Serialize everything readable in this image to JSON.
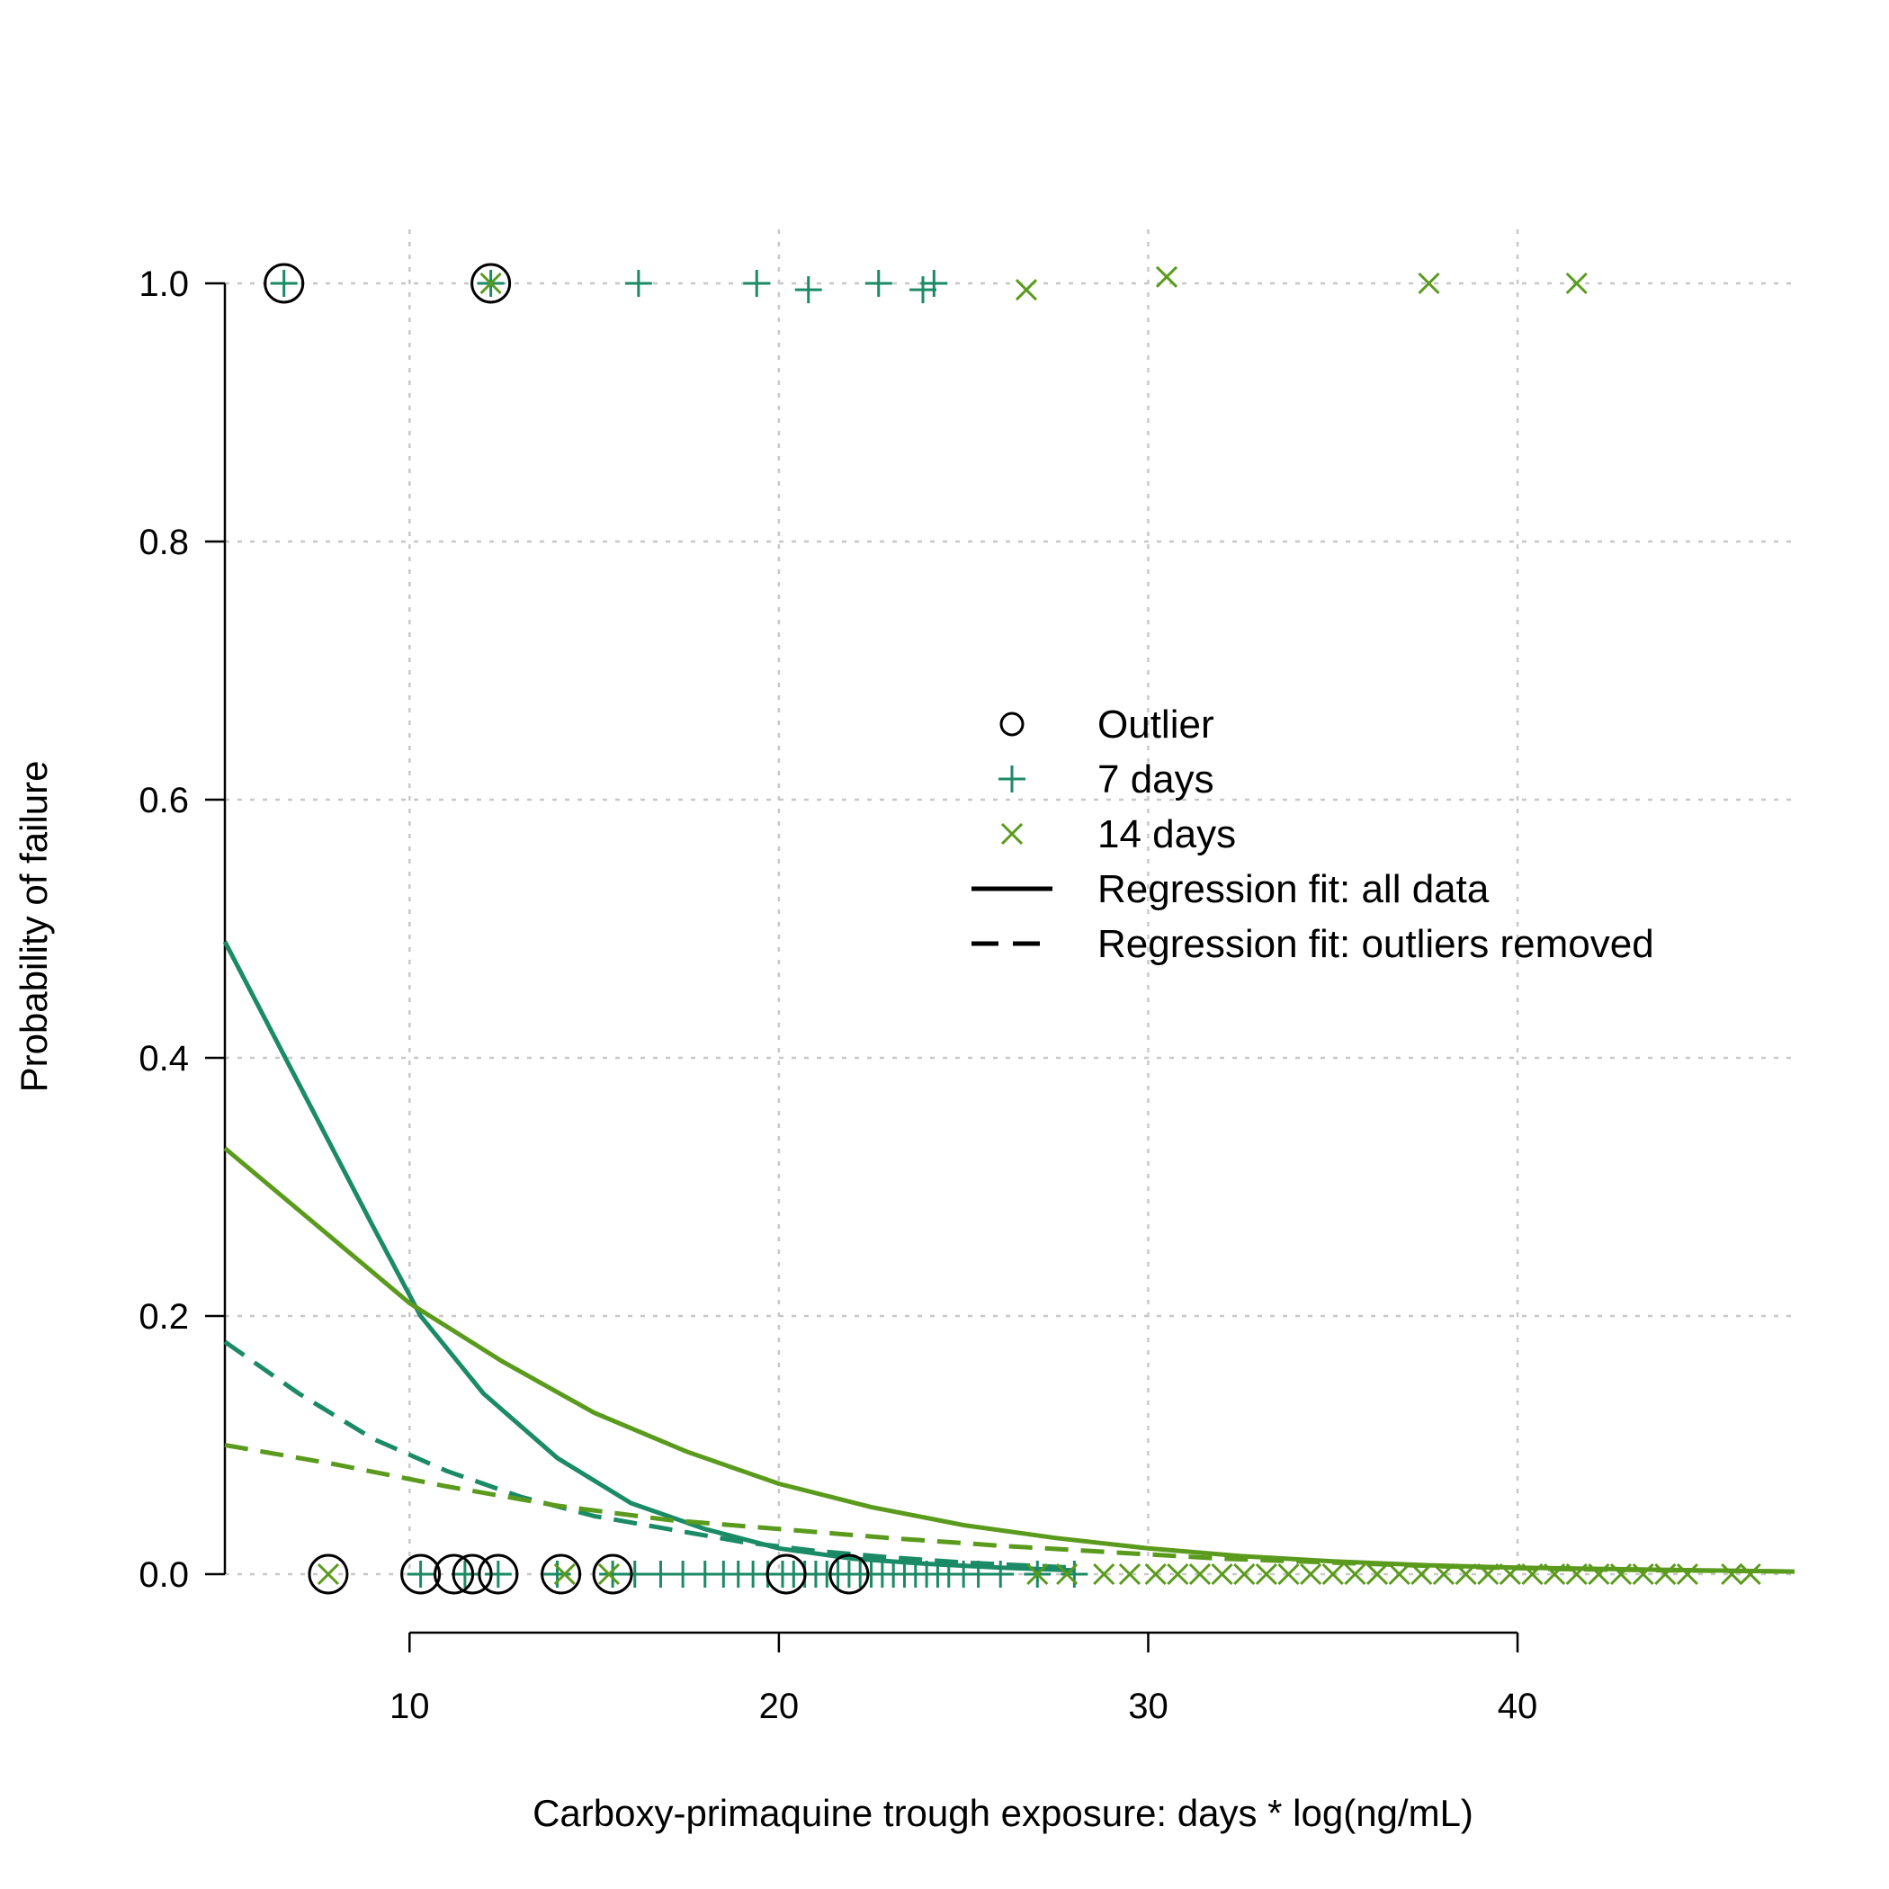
{
  "chart_data": {
    "type": "scatter",
    "title": "",
    "xlabel": "Carboxy-primaquine trough exposure: days * log(ng/mL)",
    "ylabel": "Probability of failure",
    "xlim": [
      5,
      47.5
    ],
    "ylim": [
      0,
      1
    ],
    "x_ticks": [
      "10",
      "20",
      "30",
      "40"
    ],
    "y_ticks": [
      "0.0",
      "0.2",
      "0.4",
      "0.6",
      "0.8",
      "1.0"
    ],
    "grid": true,
    "legend_position": "center-right",
    "colors": {
      "seven_days": "#1b8a66",
      "fourteen_days": "#5a9a1c",
      "outlier": "#000000"
    },
    "legend": [
      {
        "label": "Outlier",
        "symbol": "circle"
      },
      {
        "label": "7 days",
        "symbol": "plus"
      },
      {
        "label": "14 days",
        "symbol": "cross"
      },
      {
        "label": "Regression fit: all data",
        "symbol": "solid-line"
      },
      {
        "label": "Regression fit: outliers removed",
        "symbol": "dashed-line"
      }
    ],
    "series": [
      {
        "name": "7 days",
        "marker": "plus",
        "failures_x": [
          6.6,
          12.2,
          16.2,
          19.4,
          20.8,
          22.7,
          23.9,
          24.2
        ],
        "failures_y": [
          1.0,
          1.0,
          1.0,
          1.0,
          0.995,
          1.0,
          0.995,
          1.0
        ],
        "successes_x": [
          10.3,
          11.5,
          12.4,
          14.0,
          15.5,
          16.1,
          16.8,
          17.4,
          18.0,
          18.5,
          18.9,
          19.3,
          19.7,
          20.1,
          20.4,
          20.7,
          21.0,
          21.3,
          21.6,
          21.9,
          22.2,
          22.5,
          22.8,
          23.1,
          23.4,
          23.7,
          24.0,
          24.3,
          24.6,
          25.0,
          25.4,
          26.0,
          27.0,
          28.0
        ],
        "successes_y": [
          0,
          0,
          0,
          0,
          0,
          0,
          0,
          0,
          0,
          0,
          0,
          0,
          0,
          0,
          0,
          0,
          0,
          0,
          0,
          0,
          0,
          0,
          0,
          0,
          0,
          0,
          0,
          0,
          0,
          0,
          0,
          0,
          0,
          0
        ]
      },
      {
        "name": "14 days",
        "marker": "cross",
        "failures_x": [
          12.2,
          26.7,
          30.5,
          37.6,
          41.6
        ],
        "failures_y": [
          1.0,
          0.995,
          1.005,
          1.0,
          1.0
        ],
        "successes_x": [
          7.8,
          14.2,
          15.4,
          27.0,
          27.8,
          28.8,
          29.5,
          30.2,
          30.8,
          31.4,
          32.0,
          32.6,
          33.2,
          33.8,
          34.4,
          35.0,
          35.6,
          36.2,
          36.8,
          37.4,
          38.0,
          38.6,
          39.2,
          39.8,
          40.4,
          41.0,
          41.6,
          42.2,
          42.8,
          43.4,
          44.0,
          44.6,
          45.8,
          46.3
        ],
        "successes_y": [
          0,
          0,
          0,
          0,
          0,
          0,
          0,
          0,
          0,
          0,
          0,
          0,
          0,
          0,
          0,
          0,
          0,
          0,
          0,
          0,
          0,
          0,
          0,
          0,
          0,
          0,
          0,
          0,
          0,
          0,
          0,
          0,
          0,
          0
        ]
      },
      {
        "name": "Outlier",
        "marker": "circle",
        "x": [
          6.6,
          12.2,
          7.8,
          10.3,
          11.2,
          11.7,
          12.4,
          14.1,
          15.5,
          20.2,
          21.9
        ],
        "y": [
          1.0,
          1.0,
          0,
          0,
          0,
          0,
          0,
          0,
          0,
          0,
          0
        ]
      }
    ],
    "fits": [
      {
        "name": "7 days, all data",
        "style": "solid",
        "x": [
          5,
          7,
          9,
          10.3,
          12,
          14,
          16,
          18,
          20,
          22,
          24,
          26,
          28
        ],
        "y": [
          0.49,
          0.38,
          0.27,
          0.2,
          0.14,
          0.09,
          0.055,
          0.035,
          0.02,
          0.012,
          0.008,
          0.005,
          0.003
        ]
      },
      {
        "name": "14 days, all data",
        "style": "solid",
        "x": [
          5,
          7.5,
          10,
          12.5,
          15,
          17.5,
          20,
          22.5,
          25,
          27.5,
          30,
          32.5,
          35,
          37.5,
          40,
          42.5,
          45,
          47.5
        ],
        "y": [
          0.33,
          0.27,
          0.21,
          0.165,
          0.125,
          0.095,
          0.07,
          0.052,
          0.038,
          0.028,
          0.02,
          0.014,
          0.01,
          0.007,
          0.005,
          0.004,
          0.003,
          0.002
        ]
      },
      {
        "name": "7 days, outliers removed",
        "style": "dashed",
        "x": [
          5,
          7,
          9,
          11,
          13,
          15,
          17,
          19,
          21,
          23,
          25,
          28
        ],
        "y": [
          0.18,
          0.14,
          0.105,
          0.08,
          0.06,
          0.045,
          0.035,
          0.025,
          0.018,
          0.013,
          0.009,
          0.005
        ]
      },
      {
        "name": "14 days, outliers removed",
        "style": "dashed",
        "x": [
          5,
          8,
          11,
          14,
          17,
          20,
          23,
          26,
          29,
          32,
          35,
          38,
          41,
          44,
          47.5
        ],
        "y": [
          0.1,
          0.085,
          0.068,
          0.053,
          0.042,
          0.035,
          0.028,
          0.022,
          0.017,
          0.012,
          0.009,
          0.006,
          0.004,
          0.003,
          0.002
        ]
      }
    ]
  }
}
